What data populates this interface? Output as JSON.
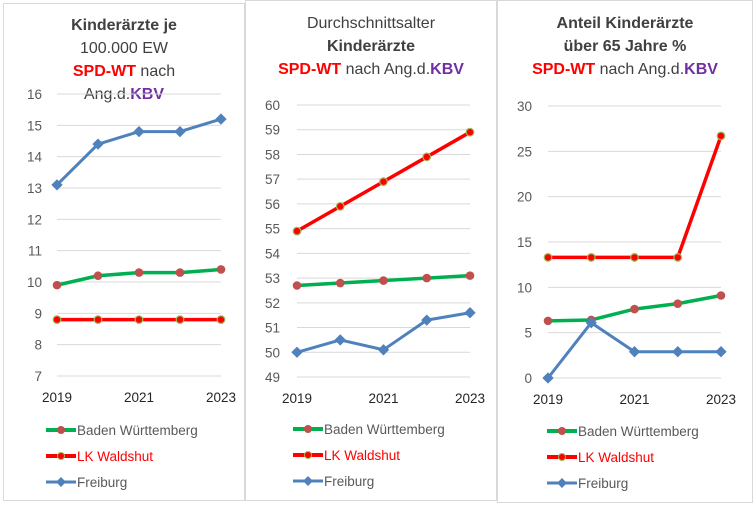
{
  "legend_labels": {
    "bw": "Baden Württemberg",
    "lk": "LK Waldshut",
    "fr": "Freiburg"
  },
  "colors": {
    "bw_line": "#00b050",
    "bw_marker": "#c0504d",
    "lk_line": "#ff0000",
    "lk_marker": "#ff0000",
    "lk_marker_border": "#9bbb59",
    "fr_line": "#4f81bd",
    "fr_marker": "#4f81bd",
    "gridline": "#d9d9d9",
    "axis_text": "#595959",
    "title_text": "#404040",
    "spd_wt": "#ff0000",
    "kbv": "#7030a0"
  },
  "titles": [
    {
      "line1": "Kinderärzte je",
      "line2": "100.000 EW",
      "spd": "SPD-WT",
      "nach": " nach",
      "ang": "Ang.d.",
      "kbv": "KBV"
    },
    {
      "line1": "Durchschnittsalter",
      "line2": "Kinderärzte",
      "spd": "SPD-WT",
      "nach": " nach Ang.d.",
      "kbv": "KBV"
    },
    {
      "line1": "Anteil Kinderärzte",
      "line2": "über 65 Jahre %",
      "spd": "SPD-WT",
      "nach": " nach Ang.d.",
      "kbv": "KBV"
    }
  ],
  "chart_data": [
    {
      "type": "line",
      "title": "Kinderärzte je 100.000 EW SPD-WT nach Ang.d.KBV",
      "x": [
        2019,
        2020,
        2021,
        2022,
        2023
      ],
      "x_tick_labels": [
        "2019",
        "2021",
        "2023"
      ],
      "ylim": [
        7,
        16
      ],
      "y_ticks": [
        7,
        8,
        9,
        10,
        11,
        12,
        13,
        14,
        15,
        16
      ],
      "grid": true,
      "legend_position": "bottom",
      "series": [
        {
          "key": "bw",
          "name": "Baden Württemberg",
          "values": [
            9.9,
            10.2,
            10.3,
            10.3,
            10.4
          ]
        },
        {
          "key": "lk",
          "name": "LK Waldshut",
          "values": [
            8.8,
            8.8,
            8.8,
            8.8,
            8.8
          ]
        },
        {
          "key": "fr",
          "name": "Freiburg",
          "values": [
            13.1,
            14.4,
            14.8,
            14.8,
            15.2
          ]
        }
      ]
    },
    {
      "type": "line",
      "title": "Durchschnittsalter Kinderärzte SPD-WT nach Ang.d.KBV",
      "x": [
        2019,
        2020,
        2021,
        2022,
        2023
      ],
      "x_tick_labels": [
        "2019",
        "2021",
        "2023"
      ],
      "ylim": [
        49,
        60
      ],
      "y_ticks": [
        49,
        50,
        51,
        52,
        53,
        54,
        55,
        56,
        57,
        58,
        59,
        60
      ],
      "grid": true,
      "legend_position": "bottom",
      "series": [
        {
          "key": "bw",
          "name": "Baden Württemberg",
          "values": [
            52.7,
            52.8,
            52.9,
            53.0,
            53.1
          ]
        },
        {
          "key": "lk",
          "name": "LK Waldshut",
          "values": [
            54.9,
            55.9,
            56.9,
            57.9,
            58.9
          ]
        },
        {
          "key": "fr",
          "name": "Freiburg",
          "values": [
            50.0,
            50.5,
            50.1,
            51.3,
            51.6
          ]
        }
      ]
    },
    {
      "type": "line",
      "title": "Anteil Kinderärzte über 65 Jahre % SPD-WT nach Ang.d.KBV",
      "x": [
        2019,
        2020,
        2021,
        2022,
        2023
      ],
      "x_tick_labels": [
        "2019",
        "2021",
        "2023"
      ],
      "ylim": [
        0,
        30
      ],
      "y_ticks": [
        0,
        5,
        10,
        15,
        20,
        25,
        30
      ],
      "grid": true,
      "legend_position": "bottom",
      "series": [
        {
          "key": "bw",
          "name": "Baden Württemberg",
          "values": [
            6.3,
            6.4,
            7.6,
            8.2,
            9.1
          ]
        },
        {
          "key": "lk",
          "name": "LK Waldshut",
          "values": [
            13.3,
            13.3,
            13.3,
            13.3,
            26.7
          ]
        },
        {
          "key": "fr",
          "name": "Freiburg",
          "values": [
            0.0,
            6.1,
            2.9,
            2.9,
            2.9
          ]
        }
      ]
    }
  ]
}
